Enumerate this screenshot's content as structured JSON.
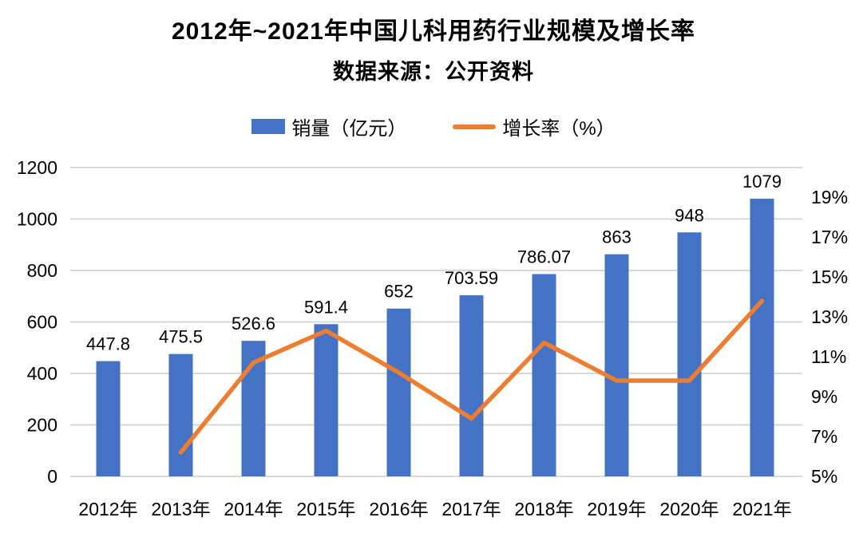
{
  "title": "2012年~2021年中国儿科用药行业规模及增长率",
  "subtitle": "数据来源：公开资料",
  "legend": [
    {
      "label": "销量（亿元）",
      "swatch": "bar-swatch"
    },
    {
      "label": "增长率（%）",
      "swatch": "line-swatch"
    }
  ],
  "colors": {
    "bar": "#4472C4",
    "line": "#ED7D31",
    "grid": "#D9D9D9",
    "text": "#000000",
    "background": "#FFFFFF"
  },
  "chart_data": {
    "type": "bar+line",
    "title": "2012年~2021年中国儿科用药行业规模及增长率",
    "subtitle": "数据来源：公开资料",
    "categories": [
      "2012年",
      "2013年",
      "2014年",
      "2015年",
      "2016年",
      "2017年",
      "2018年",
      "2019年",
      "2020年",
      "2021年"
    ],
    "series": [
      {
        "name": "销量（亿元）",
        "type": "bar",
        "axis": "left",
        "color": "#4472C4",
        "values": [
          447.8,
          475.5,
          526.6,
          591.4,
          652,
          703.59,
          786.07,
          863,
          948,
          1079
        ],
        "data_labels": [
          "447.8",
          "475.5",
          "526.6",
          "591.4",
          "652",
          "703.59",
          "786.07",
          "863",
          "948",
          "1079"
        ]
      },
      {
        "name": "增长率（%）",
        "type": "line",
        "axis": "right",
        "color": "#ED7D31",
        "values": [
          null,
          6.2,
          10.7,
          12.3,
          10.2,
          7.9,
          11.7,
          9.8,
          9.8,
          13.8
        ]
      }
    ],
    "left_axis": {
      "min": 0,
      "max": 1200,
      "step": 200,
      "tick_labels": [
        "0",
        "200",
        "400",
        "600",
        "800",
        "1000",
        "1200"
      ]
    },
    "right_axis": {
      "min": 5,
      "max": 19,
      "step": 2,
      "tick_labels": [
        "5%",
        "7%",
        "9%",
        "11%",
        "13%",
        "15%",
        "17%",
        "19%"
      ]
    },
    "grid": true,
    "legend_position": "top"
  }
}
